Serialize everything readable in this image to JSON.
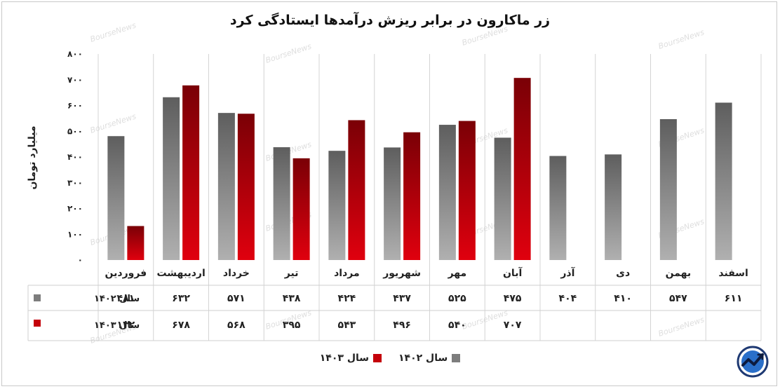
{
  "title": "زر ماکارون در برابر ریزش درآمدها ایستادگی کرد",
  "watermark": "BourseNews",
  "colors": {
    "series_1402": "#808080",
    "series_1403": "#c4000a",
    "grid": "#d4d4d4",
    "table_border": "#cfcfcf"
  },
  "chart_data": {
    "type": "bar",
    "ylabel": "میلیارد تومان",
    "ylim": [
      0,
      800
    ],
    "yticks": [
      "۰",
      "۱۰۰",
      "۲۰۰",
      "۳۰۰",
      "۴۰۰",
      "۵۰۰",
      "۶۰۰",
      "۷۰۰",
      "۸۰۰"
    ],
    "categories": [
      "فروردین",
      "اردیبهشت",
      "خرداد",
      "تیر",
      "مرداد",
      "شهریور",
      "مهر",
      "آبان",
      "آذر",
      "دی",
      "بهمن",
      "اسفند"
    ],
    "series": [
      {
        "name": "سال ۱۴۰۲",
        "values": [
          481,
          632,
          571,
          438,
          424,
          437,
          525,
          475,
          404,
          410,
          547,
          611
        ],
        "labels": [
          "۴۸۱",
          "۶۳۲",
          "۵۷۱",
          "۴۳۸",
          "۴۲۴",
          "۴۳۷",
          "۵۲۵",
          "۴۷۵",
          "۴۰۴",
          "۴۱۰",
          "۵۴۷",
          "۶۱۱"
        ]
      },
      {
        "name": "سال ۱۴۰۳",
        "values": [
          132,
          678,
          568,
          395,
          543,
          496,
          540,
          707,
          null,
          null,
          null,
          null
        ],
        "labels": [
          "۱۳۲",
          "۶۷۸",
          "۵۶۸",
          "۳۹۵",
          "۵۴۳",
          "۴۹۶",
          "۵۴۰",
          "۷۰۷",
          "",
          "",
          "",
          ""
        ]
      }
    ],
    "grid": true,
    "legend_position": "bottom",
    "data_table": true
  },
  "legend": [
    {
      "label": "سال ۱۴۰۲",
      "color_key": "series_1402"
    },
    {
      "label": "سال ۱۴۰۳",
      "color_key": "series_1403"
    }
  ],
  "logo_icon": "boursenews-logo-icon"
}
